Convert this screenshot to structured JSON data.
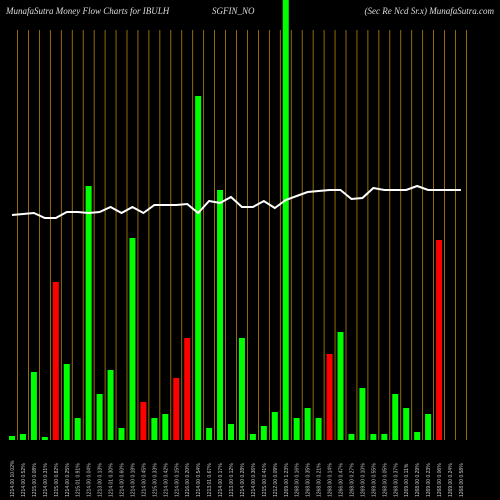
{
  "chart_data": {
    "type": "bar",
    "title_left": "MunafaSutra  Money Flow  Charts for IBULH",
    "title_center": "SGFIN_NO",
    "title_right": "(Sec Re   Ncd Sr.x) MunafaSutra.com",
    "categories": [
      "1214.00 10.02%",
      "1214.00 0.52%",
      "1215.00 0.08%",
      "1214.00 0.31%",
      "1215.00 0.82%",
      "1214.00 0.25%",
      "1215.01 0.91%",
      "1214.00 0.04%",
      "1213.00 0.13%",
      "1214.01 0.30%",
      "1214.00 0.60%",
      "1214.00 0.18%",
      "1214.00 0.45%",
      "1215.00 0.33%",
      "1214.00 0.42%",
      "1214.00 0.15%",
      "1216.00 0.20%",
      "1214.00 0.54%",
      "1213.01 0.67%",
      "1214.00 0.17%",
      "1213.00 0.12%",
      "1214.00 0.28%",
      "1214.00 0.36%",
      "1215.00 0.41%",
      "1212.00 0.09%",
      "1269.00 1.23%",
      "1268.00 0.16%",
      "1268.00 0.35%",
      "1268.00 0.21%",
      "1268.00 0.14%",
      "1266.00 0.47%",
      "1268.00 0.27%",
      "1269.00 0.10%",
      "1269.00 0.55%",
      "1268.00 0.05%",
      "1268.00 0.37%",
      "1269.00 0.11%",
      "1268.00 0.29%",
      "1269.00 0.23%",
      "1268.00 0.06%",
      "1269.00 0.24%",
      "1268.00 0.58%"
    ],
    "values": [
      4,
      6,
      68,
      3,
      158,
      76,
      22,
      254,
      46,
      70,
      12,
      202,
      38,
      22,
      26,
      62,
      102,
      344,
      12,
      250,
      16,
      102,
      6,
      14,
      28,
      440,
      22,
      32,
      22,
      86,
      108,
      6,
      52,
      6,
      6,
      46,
      32,
      8,
      26,
      200,
      0,
      0
    ],
    "colors": [
      "#00ff00",
      "#00ff00",
      "#00ff00",
      "#00ff00",
      "#ff0000",
      "#00ff00",
      "#00ff00",
      "#00ff00",
      "#00ff00",
      "#00ff00",
      "#00ff00",
      "#00ff00",
      "#ff0000",
      "#00ff00",
      "#00ff00",
      "#ff0000",
      "#ff0000",
      "#00ff00",
      "#00ff00",
      "#00ff00",
      "#00ff00",
      "#00ff00",
      "#00ff00",
      "#00ff00",
      "#00ff00",
      "#00ff00",
      "#00ff00",
      "#00ff00",
      "#00ff00",
      "#ff0000",
      "#00ff00",
      "#00ff00",
      "#00ff00",
      "#00ff00",
      "#00ff00",
      "#00ff00",
      "#00ff00",
      "#00ff00",
      "#00ff00",
      "#ff0000",
      "#00ff00",
      "#00ff00"
    ],
    "line": {
      "color": "#ffffff",
      "values": [
        225,
        226,
        227,
        222,
        222,
        228,
        228,
        227,
        228,
        233,
        227,
        233,
        227,
        235,
        235,
        235,
        236,
        227,
        239,
        237,
        243,
        233,
        233,
        239,
        232,
        240,
        244,
        248,
        249,
        250,
        250,
        241,
        242,
        252,
        250,
        250,
        250,
        254,
        250,
        250,
        250,
        250
      ]
    },
    "ylim": [
      0,
      440
    ]
  }
}
